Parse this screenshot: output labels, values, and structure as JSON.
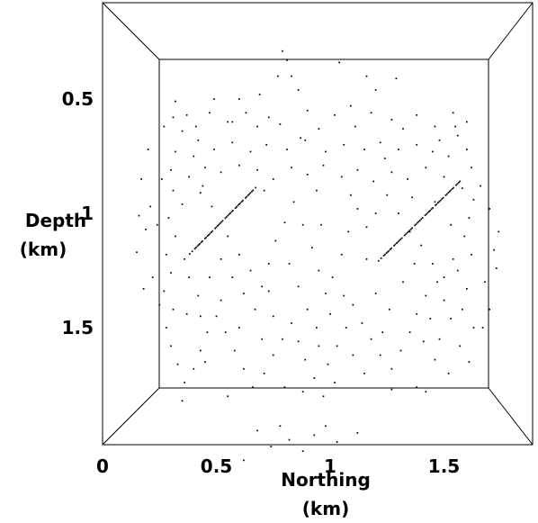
{
  "chart_data": {
    "type": "scatter",
    "view": "3d-box-projection",
    "xlabel_line1": "Northing",
    "xlabel_line2": "(km)",
    "ylabel_line1": "Depth",
    "ylabel_line2": "(km)",
    "xlim": [
      0,
      1.85
    ],
    "ylim": [
      0.2,
      2.2
    ],
    "y_inverted": true,
    "xticks": [
      {
        "value": 0,
        "label": "0"
      },
      {
        "value": 0.5,
        "label": "0.5"
      },
      {
        "value": 1,
        "label": "1"
      },
      {
        "value": 1.5,
        "label": "1.5"
      }
    ],
    "yticks": [
      {
        "value": 0.5,
        "label": "0.5"
      },
      {
        "value": 1,
        "label": "1"
      },
      {
        "value": 1.5,
        "label": "1.5"
      }
    ],
    "point_color": "#000000",
    "lineaments": [
      {
        "from": [
          0.39,
          1.17
        ],
        "to": [
          0.67,
          0.89
        ],
        "points": 45
      },
      {
        "from": [
          1.22,
          1.2
        ],
        "to": [
          1.57,
          0.86
        ],
        "points": 55
      }
    ],
    "scatter_points": [
      [
        0.79,
        0.29
      ],
      [
        0.81,
        0.33
      ],
      [
        0.83,
        0.4
      ],
      [
        0.77,
        0.4
      ],
      [
        0.86,
        0.46
      ],
      [
        1.04,
        0.34
      ],
      [
        1.16,
        0.4
      ],
      [
        1.29,
        0.41
      ],
      [
        0.63,
        0.56
      ],
      [
        0.6,
        0.5
      ],
      [
        0.49,
        0.5
      ],
      [
        0.47,
        0.56
      ],
      [
        0.32,
        0.51
      ],
      [
        0.37,
        0.57
      ],
      [
        0.41,
        0.62
      ],
      [
        0.27,
        0.62
      ],
      [
        0.42,
        0.68
      ],
      [
        0.57,
        0.6
      ],
      [
        0.68,
        0.62
      ],
      [
        0.73,
        0.58
      ],
      [
        0.78,
        0.61
      ],
      [
        0.9,
        0.55
      ],
      [
        0.95,
        0.63
      ],
      [
        1.02,
        0.57
      ],
      [
        1.11,
        0.62
      ],
      [
        1.18,
        0.56
      ],
      [
        1.27,
        0.59
      ],
      [
        1.32,
        0.63
      ],
      [
        1.38,
        0.57
      ],
      [
        1.46,
        0.62
      ],
      [
        1.54,
        0.56
      ],
      [
        1.56,
        0.66
      ],
      [
        1.48,
        0.68
      ],
      [
        1.6,
        0.72
      ],
      [
        1.62,
        0.8
      ],
      [
        1.52,
        0.75
      ],
      [
        1.45,
        0.73
      ],
      [
        1.38,
        0.7
      ],
      [
        1.3,
        0.72
      ],
      [
        1.22,
        0.69
      ],
      [
        1.15,
        0.72
      ],
      [
        1.06,
        0.7
      ],
      [
        0.98,
        0.73
      ],
      [
        0.89,
        0.68
      ],
      [
        0.81,
        0.72
      ],
      [
        0.72,
        0.7
      ],
      [
        0.65,
        0.73
      ],
      [
        0.57,
        0.69
      ],
      [
        0.49,
        0.72
      ],
      [
        0.4,
        0.75
      ],
      [
        0.32,
        0.73
      ],
      [
        0.3,
        0.81
      ],
      [
        0.38,
        0.84
      ],
      [
        0.45,
        0.8
      ],
      [
        0.52,
        0.82
      ],
      [
        0.6,
        0.79
      ],
      [
        0.68,
        0.81
      ],
      [
        0.75,
        0.85
      ],
      [
        0.83,
        0.8
      ],
      [
        0.9,
        0.83
      ],
      [
        0.97,
        0.79
      ],
      [
        1.05,
        0.84
      ],
      [
        1.12,
        0.81
      ],
      [
        1.19,
        0.86
      ],
      [
        1.27,
        0.82
      ],
      [
        1.34,
        0.85
      ],
      [
        1.42,
        0.8
      ],
      [
        1.5,
        0.84
      ],
      [
        1.58,
        0.89
      ],
      [
        1.63,
        0.94
      ],
      [
        1.61,
        1.02
      ],
      [
        1.59,
        1.1
      ],
      [
        1.62,
        1.18
      ],
      [
        1.56,
        1.25
      ],
      [
        1.6,
        1.33
      ],
      [
        1.58,
        1.42
      ],
      [
        1.63,
        1.5
      ],
      [
        1.57,
        1.58
      ],
      [
        1.61,
        1.65
      ],
      [
        1.52,
        1.7
      ],
      [
        1.46,
        1.64
      ],
      [
        1.48,
        1.55
      ],
      [
        1.44,
        1.46
      ],
      [
        1.5,
        1.38
      ],
      [
        1.47,
        1.3
      ],
      [
        1.42,
        1.36
      ],
      [
        1.38,
        1.44
      ],
      [
        1.35,
        1.52
      ],
      [
        1.31,
        1.6
      ],
      [
        1.27,
        1.68
      ],
      [
        1.22,
        1.62
      ],
      [
        1.18,
        1.55
      ],
      [
        1.14,
        1.48
      ],
      [
        1.1,
        1.4
      ],
      [
        1.07,
        1.5
      ],
      [
        1.03,
        1.58
      ],
      [
        0.99,
        1.66
      ],
      [
        1.02,
        1.74
      ],
      [
        0.97,
        1.8
      ],
      [
        0.93,
        1.72
      ],
      [
        0.89,
        1.64
      ],
      [
        0.86,
        1.56
      ],
      [
        0.83,
        1.48
      ],
      [
        0.79,
        1.55
      ],
      [
        0.75,
        1.62
      ],
      [
        0.71,
        1.7
      ],
      [
        0.66,
        1.76
      ],
      [
        0.62,
        1.68
      ],
      [
        0.58,
        1.6
      ],
      [
        0.54,
        1.52
      ],
      [
        0.5,
        1.45
      ],
      [
        0.46,
        1.52
      ],
      [
        0.43,
        1.6
      ],
      [
        0.4,
        1.68
      ],
      [
        0.36,
        1.74
      ],
      [
        0.33,
        1.66
      ],
      [
        0.3,
        1.58
      ],
      [
        0.28,
        1.5
      ],
      [
        0.31,
        1.42
      ],
      [
        0.27,
        1.34
      ],
      [
        0.3,
        1.26
      ],
      [
        0.28,
        1.18
      ],
      [
        0.32,
        1.1
      ],
      [
        0.29,
        1.02
      ],
      [
        0.35,
        0.96
      ],
      [
        0.31,
        0.9
      ],
      [
        0.43,
        0.91
      ],
      [
        0.48,
        0.97
      ],
      [
        0.55,
        1.1
      ],
      [
        0.6,
        1.18
      ],
      [
        0.65,
        1.25
      ],
      [
        0.7,
        1.32
      ],
      [
        0.73,
        1.22
      ],
      [
        0.76,
        1.12
      ],
      [
        0.8,
        1.04
      ],
      [
        0.84,
        0.95
      ],
      [
        0.88,
        1.05
      ],
      [
        0.92,
        1.15
      ],
      [
        0.95,
        1.25
      ],
      [
        0.98,
        1.35
      ],
      [
        1.01,
        1.28
      ],
      [
        1.05,
        1.18
      ],
      [
        1.08,
        1.08
      ],
      [
        1.12,
        0.98
      ],
      [
        1.16,
        1.06
      ],
      [
        1.2,
        1.0
      ],
      [
        1.25,
        0.92
      ],
      [
        1.3,
        1.0
      ],
      [
        1.35,
        1.08
      ],
      [
        1.4,
        1.14
      ],
      [
        1.45,
        1.22
      ],
      [
        1.5,
        1.28
      ],
      [
        1.54,
        1.2
      ],
      [
        1.53,
        1.05
      ],
      [
        1.46,
        0.95
      ],
      [
        0.86,
        1.32
      ],
      [
        0.9,
        1.42
      ],
      [
        0.94,
        1.5
      ],
      [
        1.0,
        1.44
      ],
      [
        1.06,
        1.36
      ],
      [
        0.67,
        1.42
      ],
      [
        0.62,
        1.35
      ],
      [
        0.57,
        1.28
      ],
      [
        0.52,
        1.2
      ],
      [
        0.47,
        1.28
      ],
      [
        0.42,
        1.36
      ],
      [
        0.38,
        1.28
      ],
      [
        0.36,
        1.2
      ],
      [
        0.37,
        1.44
      ],
      [
        0.43,
        1.45
      ],
      [
        1.2,
        1.35
      ],
      [
        1.26,
        1.42
      ],
      [
        1.32,
        1.3
      ],
      [
        1.37,
        1.22
      ],
      [
        0.75,
        1.45
      ],
      [
        0.7,
        1.55
      ],
      [
        0.95,
        1.58
      ],
      [
        1.1,
        1.62
      ],
      [
        1.15,
        1.7
      ],
      [
        0.8,
        1.76
      ],
      [
        0.17,
        0.85
      ],
      [
        0.16,
        1.01
      ],
      [
        0.15,
        1.17
      ],
      [
        0.18,
        1.33
      ],
      [
        0.19,
        1.07
      ],
      [
        0.2,
        0.72
      ],
      [
        0.22,
        1.28
      ],
      [
        0.21,
        0.97
      ],
      [
        1.7,
        0.98
      ],
      [
        1.72,
        1.16
      ],
      [
        1.68,
        1.3
      ],
      [
        1.74,
        1.08
      ],
      [
        1.66,
        0.88
      ],
      [
        1.7,
        1.42
      ],
      [
        1.67,
        1.5
      ],
      [
        1.73,
        1.24
      ],
      [
        0.88,
        2.04
      ],
      [
        0.82,
        1.99
      ],
      [
        0.93,
        1.97
      ],
      [
        0.74,
        2.02
      ],
      [
        1.03,
        2.0
      ],
      [
        0.68,
        1.95
      ],
      [
        1.12,
        1.96
      ],
      [
        0.62,
        2.08
      ],
      [
        0.98,
        1.93
      ],
      [
        0.78,
        1.93
      ],
      [
        0.55,
        0.6
      ],
      [
        0.87,
        0.67
      ],
      [
        1.09,
        0.53
      ],
      [
        1.24,
        0.76
      ],
      [
        0.35,
        0.64
      ],
      [
        0.44,
        0.88
      ],
      [
        0.71,
        0.9
      ],
      [
        0.94,
        0.9
      ],
      [
        1.09,
        0.92
      ],
      [
        1.36,
        0.93
      ],
      [
        0.52,
        1.38
      ],
      [
        0.82,
        1.22
      ],
      [
        1.23,
        1.52
      ],
      [
        1.41,
        1.56
      ],
      [
        0.45,
        1.65
      ],
      [
        0.6,
        1.5
      ],
      [
        1.53,
        1.46
      ],
      [
        1.27,
        1.77
      ],
      [
        0.55,
        1.8
      ],
      [
        0.35,
        1.82
      ],
      [
        1.38,
        1.76
      ],
      [
        0.73,
        1.34
      ],
      [
        1.16,
        1.2
      ],
      [
        0.96,
        1.05
      ],
      [
        0.26,
        0.85
      ],
      [
        0.24,
        1.05
      ],
      [
        0.25,
        1.4
      ],
      [
        1.55,
        0.62
      ],
      [
        1.6,
        0.6
      ],
      [
        0.31,
        0.58
      ],
      [
        0.69,
        0.48
      ],
      [
        1.2,
        0.46
      ],
      [
        1.42,
        1.78
      ],
      [
        0.88,
        1.78
      ]
    ]
  }
}
